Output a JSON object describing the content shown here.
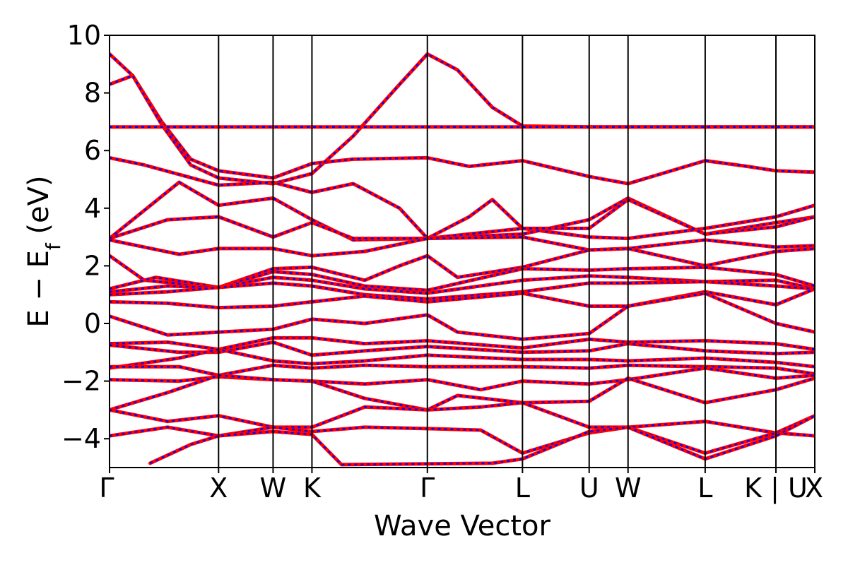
{
  "chart_data": {
    "type": "line",
    "title": "",
    "xlabel": "Wave Vector",
    "ylabel_parts": {
      "main": "E − E",
      "sub": "f",
      "unit": " (eV)"
    },
    "ylim": [
      -5,
      10
    ],
    "yticks": [
      -4,
      -2,
      0,
      2,
      4,
      6,
      8,
      10
    ],
    "ytick_labels": [
      "−4",
      "−2",
      "0",
      "2",
      "4",
      "6",
      "8",
      "10"
    ],
    "xlim": [
      0,
      6.08
    ],
    "kpoints": [
      {
        "label": "Γ",
        "x": 0.0
      },
      {
        "label": "X",
        "x": 0.94
      },
      {
        "label": "W",
        "x": 1.41
      },
      {
        "label": "K",
        "x": 1.745
      },
      {
        "label": "Γ",
        "x": 2.74
      },
      {
        "label": "L",
        "x": 3.56
      },
      {
        "label": "U",
        "x": 4.135
      },
      {
        "label": "W",
        "x": 4.47
      },
      {
        "label": "L",
        "x": 5.135
      },
      {
        "label": "K | U",
        "x": 5.745
      },
      {
        "label": "X",
        "x": 6.08
      }
    ],
    "series_colors": [
      "#ff0000",
      "#0000ff"
    ],
    "bands": [
      [
        [
          0,
          9.35
        ],
        [
          0.2,
          8.6
        ],
        [
          0.45,
          7.0
        ],
        [
          0.7,
          5.7
        ],
        [
          0.94,
          5.3
        ],
        [
          1.41,
          5.05
        ],
        [
          1.745,
          5.55
        ],
        [
          2.1,
          5.7
        ],
        [
          2.74,
          5.75
        ],
        [
          3.1,
          5.45
        ],
        [
          3.56,
          5.65
        ],
        [
          4.135,
          5.1
        ],
        [
          4.47,
          4.85
        ],
        [
          5.135,
          5.65
        ],
        [
          5.5,
          5.45
        ],
        [
          5.745,
          5.3
        ],
        [
          6.08,
          5.25
        ]
      ],
      [
        [
          0,
          8.3
        ],
        [
          0.2,
          8.6
        ],
        [
          0.45,
          6.9
        ],
        [
          0.7,
          5.5
        ],
        [
          0.94,
          5.05
        ],
        [
          1.41,
          4.85
        ],
        [
          1.745,
          5.2
        ],
        [
          2.1,
          6.5
        ],
        [
          2.5,
          8.3
        ],
        [
          2.74,
          9.35
        ],
        [
          3.0,
          8.8
        ],
        [
          3.3,
          7.5
        ],
        [
          3.56,
          6.85
        ],
        [
          4.135,
          6.82
        ],
        [
          4.47,
          6.82
        ],
        [
          5.135,
          6.82
        ],
        [
          5.745,
          6.82
        ],
        [
          6.08,
          6.82
        ]
      ],
      [
        [
          0,
          6.82
        ],
        [
          0.94,
          6.82
        ],
        [
          1.41,
          6.82
        ],
        [
          1.745,
          6.82
        ],
        [
          2.74,
          6.82
        ],
        [
          3.56,
          6.82
        ],
        [
          4.135,
          6.82
        ],
        [
          4.47,
          6.82
        ],
        [
          5.135,
          6.82
        ],
        [
          5.745,
          6.82
        ],
        [
          6.08,
          6.82
        ]
      ],
      [
        [
          0,
          5.75
        ],
        [
          0.3,
          5.5
        ],
        [
          0.94,
          4.8
        ],
        [
          1.41,
          4.9
        ],
        [
          1.745,
          4.55
        ],
        [
          2.1,
          4.85
        ],
        [
          2.5,
          4.0
        ],
        [
          2.74,
          2.95
        ],
        [
          3.1,
          3.7
        ],
        [
          3.3,
          4.3
        ],
        [
          3.56,
          3.3
        ],
        [
          4.135,
          3.0
        ],
        [
          4.47,
          2.95
        ],
        [
          5.135,
          3.3
        ],
        [
          5.745,
          3.7
        ],
        [
          6.08,
          4.1
        ]
      ],
      [
        [
          0,
          2.95
        ],
        [
          0.6,
          4.9
        ],
        [
          0.94,
          4.1
        ],
        [
          1.41,
          4.35
        ],
        [
          1.745,
          3.6
        ],
        [
          2.1,
          2.9
        ],
        [
          2.74,
          2.95
        ],
        [
          3.56,
          3.1
        ],
        [
          4.135,
          3.6
        ],
        [
          4.47,
          4.35
        ],
        [
          5.135,
          3.1
        ],
        [
          5.745,
          3.5
        ],
        [
          6.08,
          3.7
        ]
      ],
      [
        [
          0,
          2.95
        ],
        [
          0.5,
          3.6
        ],
        [
          0.94,
          3.7
        ],
        [
          1.41,
          3.0
        ],
        [
          1.745,
          3.5
        ],
        [
          2.1,
          2.95
        ],
        [
          2.74,
          2.95
        ],
        [
          3.56,
          3.3
        ],
        [
          4.135,
          3.3
        ],
        [
          4.47,
          4.3
        ],
        [
          5.135,
          3.1
        ],
        [
          5.745,
          3.35
        ],
        [
          6.08,
          3.7
        ]
      ],
      [
        [
          0,
          2.9
        ],
        [
          0.6,
          2.4
        ],
        [
          0.94,
          2.6
        ],
        [
          1.41,
          2.6
        ],
        [
          1.745,
          2.35
        ],
        [
          2.2,
          2.5
        ],
        [
          2.74,
          2.95
        ],
        [
          3.56,
          3.0
        ],
        [
          4.135,
          2.55
        ],
        [
          4.47,
          2.6
        ],
        [
          5.135,
          2.9
        ],
        [
          5.745,
          2.65
        ],
        [
          6.08,
          2.7
        ]
      ],
      [
        [
          0,
          2.35
        ],
        [
          0.3,
          1.5
        ],
        [
          0.94,
          1.25
        ],
        [
          1.41,
          1.9
        ],
        [
          1.745,
          1.95
        ],
        [
          2.2,
          1.5
        ],
        [
          2.5,
          2.0
        ],
        [
          2.74,
          2.35
        ],
        [
          3.0,
          1.6
        ],
        [
          3.56,
          1.95
        ],
        [
          4.135,
          2.55
        ],
        [
          4.47,
          2.6
        ],
        [
          5.135,
          2.0
        ],
        [
          5.745,
          2.5
        ],
        [
          6.08,
          2.6
        ]
      ],
      [
        [
          0,
          1.2
        ],
        [
          0.4,
          1.6
        ],
        [
          0.94,
          1.25
        ],
        [
          1.41,
          1.8
        ],
        [
          1.745,
          1.7
        ],
        [
          2.2,
          1.3
        ],
        [
          2.74,
          1.15
        ],
        [
          3.56,
          1.9
        ],
        [
          4.135,
          1.85
        ],
        [
          4.47,
          1.9
        ],
        [
          5.135,
          1.95
        ],
        [
          5.745,
          1.7
        ],
        [
          6.08,
          1.3
        ]
      ],
      [
        [
          0,
          1.1
        ],
        [
          0.5,
          1.3
        ],
        [
          0.94,
          1.25
        ],
        [
          1.41,
          1.6
        ],
        [
          1.745,
          1.5
        ],
        [
          2.2,
          1.2
        ],
        [
          2.74,
          1.05
        ],
        [
          3.56,
          1.5
        ],
        [
          4.135,
          1.65
        ],
        [
          4.47,
          1.6
        ],
        [
          5.135,
          1.45
        ],
        [
          5.745,
          1.5
        ],
        [
          6.08,
          1.2
        ]
      ],
      [
        [
          0,
          1.0
        ],
        [
          0.5,
          1.1
        ],
        [
          0.94,
          1.25
        ],
        [
          1.41,
          1.4
        ],
        [
          1.745,
          1.3
        ],
        [
          2.2,
          1.0
        ],
        [
          2.74,
          0.85
        ],
        [
          3.56,
          1.1
        ],
        [
          4.135,
          1.4
        ],
        [
          4.47,
          1.4
        ],
        [
          5.135,
          1.45
        ],
        [
          5.745,
          1.3
        ],
        [
          6.08,
          1.2
        ]
      ],
      [
        [
          0,
          0.75
        ],
        [
          0.5,
          0.7
        ],
        [
          0.94,
          0.55
        ],
        [
          1.41,
          0.6
        ],
        [
          1.745,
          0.75
        ],
        [
          2.2,
          0.95
        ],
        [
          2.74,
          0.75
        ],
        [
          3.56,
          1.05
        ],
        [
          4.135,
          0.6
        ],
        [
          4.47,
          0.6
        ],
        [
          5.135,
          1.1
        ],
        [
          5.745,
          0.65
        ],
        [
          6.08,
          1.2
        ]
      ],
      [
        [
          0,
          0.25
        ],
        [
          0.5,
          -0.4
        ],
        [
          0.94,
          -0.3
        ],
        [
          1.41,
          -0.2
        ],
        [
          1.745,
          0.15
        ],
        [
          2.2,
          0.0
        ],
        [
          2.74,
          0.3
        ],
        [
          3.0,
          -0.3
        ],
        [
          3.56,
          -0.55
        ],
        [
          4.135,
          -0.35
        ],
        [
          4.47,
          0.6
        ],
        [
          5.135,
          1.05
        ],
        [
          5.745,
          0.0
        ],
        [
          6.08,
          -0.3
        ]
      ],
      [
        [
          0,
          -0.7
        ],
        [
          0.5,
          -0.65
        ],
        [
          0.94,
          -0.9
        ],
        [
          1.41,
          -0.5
        ],
        [
          1.745,
          -0.5
        ],
        [
          2.2,
          -0.7
        ],
        [
          2.74,
          -0.6
        ],
        [
          3.56,
          -0.85
        ],
        [
          4.135,
          -0.55
        ],
        [
          4.47,
          -0.65
        ],
        [
          5.135,
          -0.6
        ],
        [
          5.745,
          -0.7
        ],
        [
          6.08,
          -0.9
        ]
      ],
      [
        [
          0,
          -0.75
        ],
        [
          0.6,
          -1.0
        ],
        [
          0.94,
          -1.0
        ],
        [
          1.41,
          -0.65
        ],
        [
          1.745,
          -1.1
        ],
        [
          2.2,
          -0.95
        ],
        [
          2.74,
          -0.8
        ],
        [
          3.56,
          -1.0
        ],
        [
          4.135,
          -0.95
        ],
        [
          4.47,
          -0.7
        ],
        [
          5.135,
          -0.95
        ],
        [
          5.745,
          -1.05
        ],
        [
          6.08,
          -1.0
        ]
      ],
      [
        [
          0,
          -1.55
        ],
        [
          0.6,
          -1.2
        ],
        [
          0.94,
          -0.9
        ],
        [
          1.41,
          -1.3
        ],
        [
          1.745,
          -1.4
        ],
        [
          2.2,
          -1.3
        ],
        [
          2.74,
          -1.1
        ],
        [
          3.56,
          -1.25
        ],
        [
          4.135,
          -1.25
        ],
        [
          4.47,
          -1.3
        ],
        [
          5.135,
          -1.2
        ],
        [
          5.745,
          -1.35
        ],
        [
          6.08,
          -1.5
        ]
      ],
      [
        [
          0,
          -1.5
        ],
        [
          0.6,
          -1.5
        ],
        [
          0.94,
          -1.8
        ],
        [
          1.41,
          -1.45
        ],
        [
          1.745,
          -1.55
        ],
        [
          2.2,
          -1.45
        ],
        [
          2.74,
          -1.5
        ],
        [
          3.56,
          -1.5
        ],
        [
          4.135,
          -1.55
        ],
        [
          4.47,
          -1.45
        ],
        [
          5.135,
          -1.5
        ],
        [
          5.745,
          -1.55
        ],
        [
          6.08,
          -1.75
        ]
      ],
      [
        [
          0,
          -1.95
        ],
        [
          0.6,
          -2.0
        ],
        [
          0.94,
          -1.85
        ],
        [
          1.41,
          -1.95
        ],
        [
          1.745,
          -2.0
        ],
        [
          2.2,
          -2.1
        ],
        [
          2.74,
          -1.95
        ],
        [
          3.2,
          -2.3
        ],
        [
          3.56,
          -2.0
        ],
        [
          4.135,
          -2.1
        ],
        [
          4.47,
          -1.95
        ],
        [
          5.135,
          -1.55
        ],
        [
          5.745,
          -1.9
        ],
        [
          6.08,
          -1.8
        ]
      ],
      [
        [
          0,
          -3.0
        ],
        [
          0.5,
          -2.4
        ],
        [
          0.94,
          -1.8
        ],
        [
          1.41,
          -1.95
        ],
        [
          1.745,
          -2.0
        ],
        [
          2.2,
          -2.6
        ],
        [
          2.74,
          -3.0
        ],
        [
          3.0,
          -2.5
        ],
        [
          3.56,
          -2.75
        ],
        [
          4.135,
          -2.7
        ],
        [
          4.47,
          -1.9
        ],
        [
          5.135,
          -2.75
        ],
        [
          5.745,
          -2.3
        ],
        [
          6.08,
          -1.9
        ]
      ],
      [
        [
          0,
          -3.0
        ],
        [
          0.5,
          -3.4
        ],
        [
          0.94,
          -3.2
        ],
        [
          1.41,
          -3.6
        ],
        [
          1.745,
          -3.6
        ],
        [
          2.2,
          -2.9
        ],
        [
          2.74,
          -3.0
        ],
        [
          3.2,
          -2.9
        ],
        [
          3.56,
          -2.75
        ],
        [
          4.135,
          -3.6
        ],
        [
          4.47,
          -3.6
        ],
        [
          5.135,
          -3.4
        ],
        [
          5.745,
          -3.8
        ],
        [
          6.08,
          -3.2
        ]
      ],
      [
        [
          0,
          -3.9
        ],
        [
          0.5,
          -3.6
        ],
        [
          0.94,
          -3.9
        ],
        [
          1.41,
          -3.6
        ],
        [
          1.745,
          -3.75
        ],
        [
          2.2,
          -3.6
        ],
        [
          2.74,
          -3.65
        ],
        [
          3.2,
          -3.7
        ],
        [
          3.56,
          -4.5
        ],
        [
          4.135,
          -3.8
        ],
        [
          4.47,
          -3.6
        ],
        [
          5.135,
          -4.5
        ],
        [
          5.745,
          -3.8
        ],
        [
          6.08,
          -3.9
        ]
      ],
      [
        [
          0.35,
          -4.85
        ],
        [
          0.7,
          -4.2
        ],
        [
          0.94,
          -3.9
        ],
        [
          1.41,
          -3.75
        ],
        [
          1.745,
          -3.85
        ],
        [
          2.0,
          -4.9
        ],
        [
          3.3,
          -4.85
        ],
        [
          3.56,
          -4.7
        ],
        [
          4.135,
          -3.75
        ],
        [
          4.47,
          -3.6
        ],
        [
          5.135,
          -4.7
        ],
        [
          5.745,
          -3.9
        ],
        [
          6.08,
          -3.2
        ]
      ]
    ]
  }
}
